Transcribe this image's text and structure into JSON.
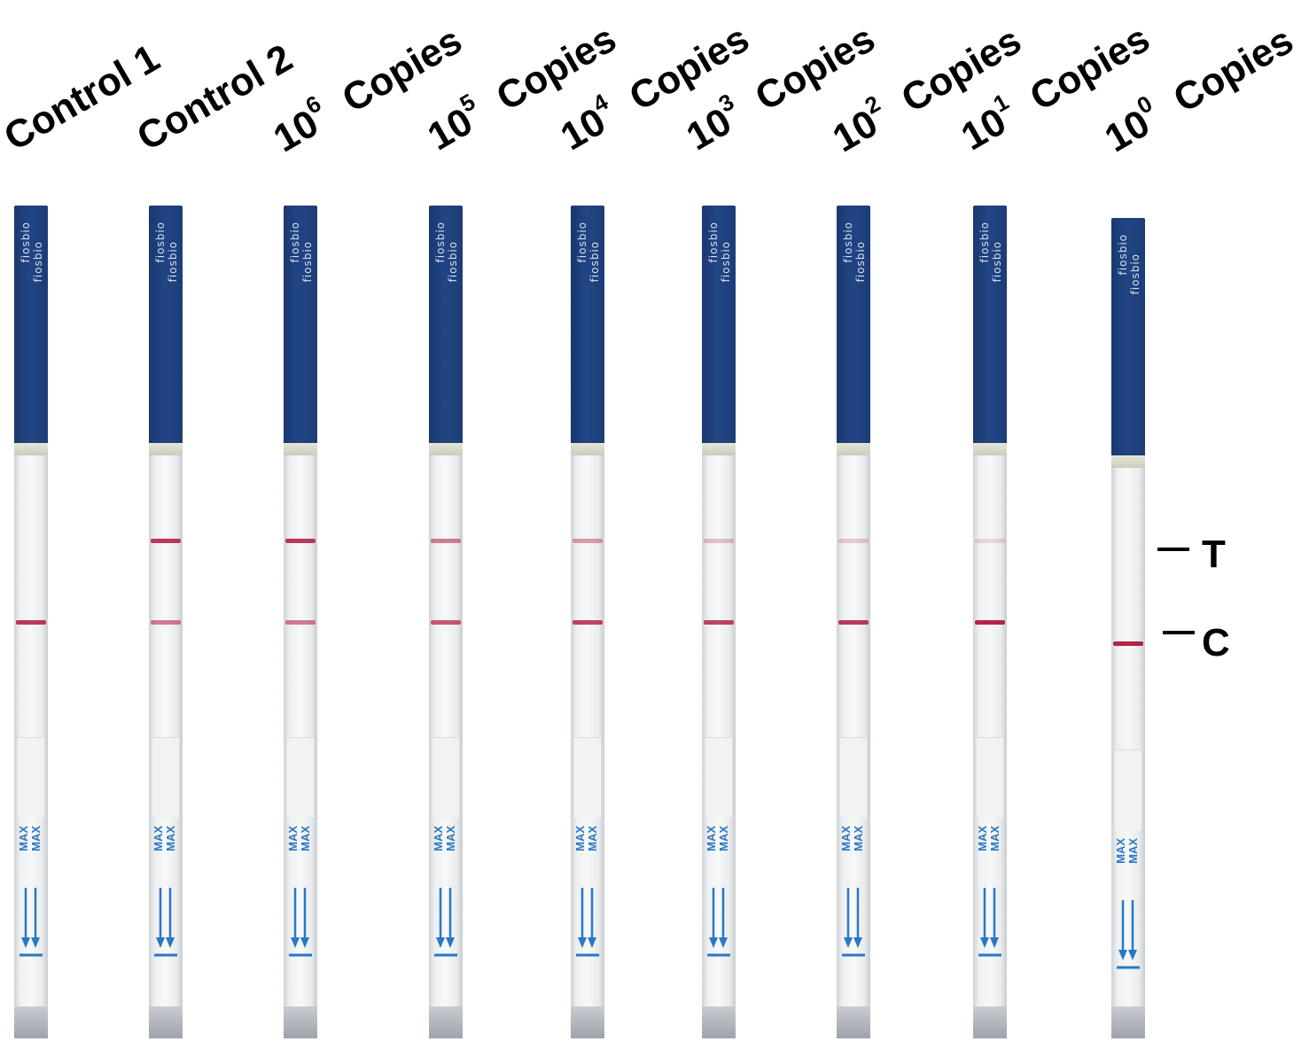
{
  "lanes": [
    {
      "label": "Control 1",
      "exp": "",
      "suffix": "",
      "t_intensity": 0,
      "c_intensity": 0.85
    },
    {
      "label": "Control 2",
      "exp": "",
      "suffix": "",
      "t_intensity": 0.85,
      "c_intensity": 0.55
    },
    {
      "label": "10",
      "exp": "6",
      "suffix": "Copies",
      "t_intensity": 0.85,
      "c_intensity": 0.55
    },
    {
      "label": "10",
      "exp": "5",
      "suffix": "Copies",
      "t_intensity": 0.55,
      "c_intensity": 0.7
    },
    {
      "label": "10",
      "exp": "4",
      "suffix": "Copies",
      "t_intensity": 0.4,
      "c_intensity": 0.8
    },
    {
      "label": "10",
      "exp": "3",
      "suffix": "Copies",
      "t_intensity": 0.25,
      "c_intensity": 0.8
    },
    {
      "label": "10",
      "exp": "2",
      "suffix": "Copies",
      "t_intensity": 0.2,
      "c_intensity": 0.85
    },
    {
      "label": "10",
      "exp": "1",
      "suffix": "Copies",
      "t_intensity": 0.15,
      "c_intensity": 0.95
    },
    {
      "label": "10",
      "exp": "0",
      "suffix": "Copies",
      "t_intensity": 0,
      "c_intensity": 0.95
    }
  ],
  "strip": {
    "brand": "fiosbio",
    "max_mark": "MAX",
    "cap_color": "#214585",
    "band_color": "#b0173f"
  },
  "markers": {
    "t": "T",
    "c": "C"
  }
}
